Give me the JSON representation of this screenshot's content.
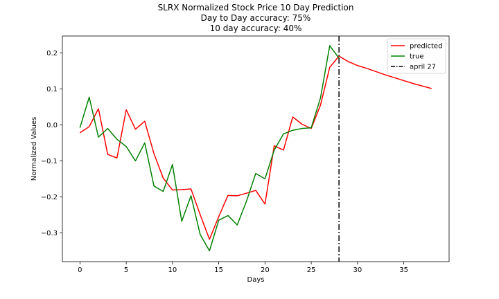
{
  "chart_data": {
    "type": "line",
    "title": "SLRX Normalized Stock Price 10 Day Prediction",
    "subtitle_lines": [
      "Day to Day accuracy: 75%",
      "10 day accuracy: 40%"
    ],
    "xlabel": "Days",
    "ylabel": "Normalized Values",
    "xlim": [
      -1.9,
      39.9
    ],
    "ylim": [
      -0.38,
      0.247
    ],
    "xticks": [
      0,
      5,
      10,
      15,
      20,
      25,
      30,
      35
    ],
    "yticks": [
      -0.3,
      -0.2,
      -0.1,
      0.0,
      0.1,
      0.2
    ],
    "ytick_labels": [
      "−0.3",
      "−0.2",
      "−0.1",
      "0.0",
      "0.1",
      "0.2"
    ],
    "grid": false,
    "legend_position": "top-right",
    "series": [
      {
        "name": "predicted",
        "color": "#ff0000",
        "x": [
          0,
          1,
          2,
          3,
          4,
          5,
          6,
          7,
          8,
          9,
          10,
          11,
          12,
          13,
          14,
          15,
          16,
          17,
          18,
          19,
          20,
          21,
          22,
          23,
          24,
          25,
          26,
          27,
          28,
          29,
          30,
          31,
          32,
          33,
          34,
          35,
          36,
          37,
          38
        ],
        "values": [
          -0.022,
          -0.005,
          0.045,
          -0.082,
          -0.092,
          0.042,
          -0.012,
          0.01,
          -0.08,
          -0.148,
          -0.181,
          -0.18,
          -0.178,
          -0.25,
          -0.318,
          -0.255,
          -0.196,
          -0.197,
          -0.19,
          -0.182,
          -0.22,
          -0.058,
          -0.07,
          0.022,
          0.002,
          -0.01,
          0.055,
          0.16,
          0.191,
          0.176,
          0.165,
          0.157,
          0.148,
          0.139,
          0.131,
          0.123,
          0.115,
          0.108,
          0.101
        ]
      },
      {
        "name": "true",
        "color": "#008000",
        "x": [
          0,
          1,
          2,
          3,
          4,
          5,
          6,
          7,
          8,
          9,
          10,
          11,
          12,
          13,
          14,
          15,
          16,
          17,
          18,
          19,
          20,
          21,
          22,
          23,
          24,
          25,
          26,
          27,
          28
        ],
        "values": [
          -0.008,
          0.077,
          -0.034,
          -0.01,
          -0.04,
          -0.06,
          -0.1,
          -0.05,
          -0.17,
          -0.185,
          -0.11,
          -0.268,
          -0.197,
          -0.305,
          -0.35,
          -0.265,
          -0.252,
          -0.278,
          -0.212,
          -0.135,
          -0.15,
          -0.07,
          -0.025,
          -0.015,
          -0.01,
          -0.008,
          0.075,
          0.22,
          0.185
        ]
      }
    ],
    "vline": {
      "name": "april 27",
      "x": 28,
      "color": "#000000",
      "style": "dash-dot"
    }
  }
}
